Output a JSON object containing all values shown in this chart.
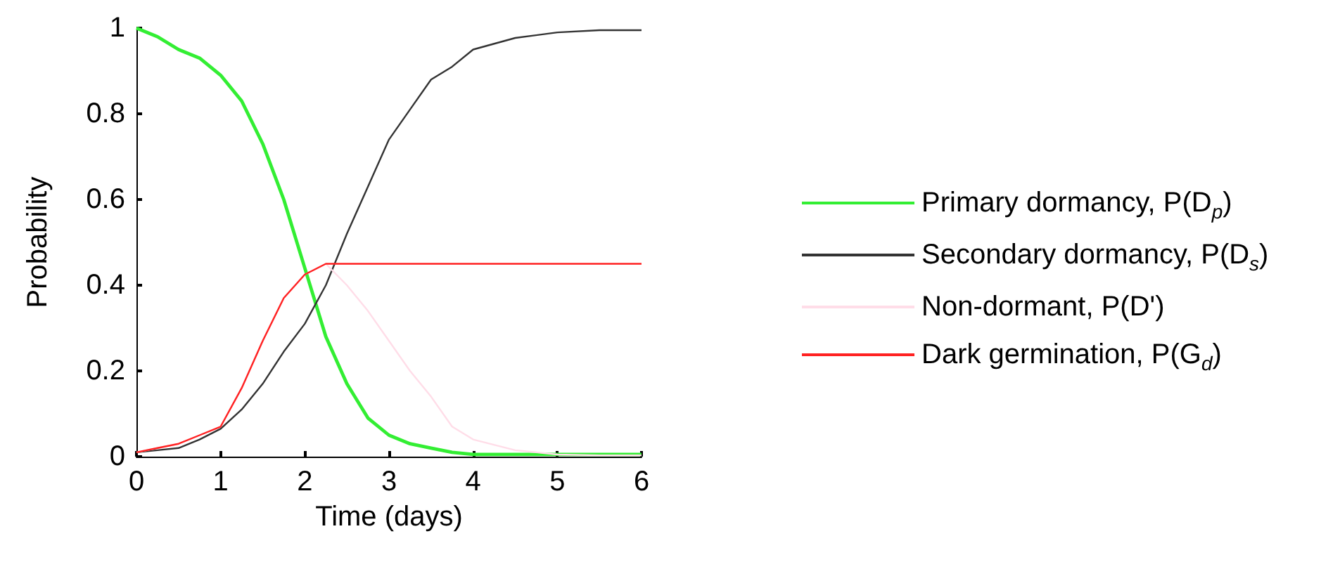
{
  "chart_data": {
    "type": "line",
    "xlabel": "Time (days)",
    "ylabel": "Probability",
    "x": [
      0,
      0.25,
      0.5,
      0.75,
      1,
      1.25,
      1.5,
      1.75,
      2,
      2.25,
      2.5,
      2.75,
      3,
      3.25,
      3.5,
      3.75,
      4,
      4.5,
      5,
      5.5,
      6
    ],
    "series": [
      {
        "name": "Primary dormancy, P(D$_{p}$)",
        "color": "#33ee33",
        "values": [
          1.0,
          0.98,
          0.95,
          0.93,
          0.89,
          0.83,
          0.73,
          0.6,
          0.44,
          0.28,
          0.17,
          0.09,
          0.05,
          0.03,
          0.02,
          0.01,
          0.005,
          0.005,
          0.005,
          0.005,
          0.005
        ]
      },
      {
        "name": "Secondary dormancy, P(D$_{s}$)",
        "color": "#333333",
        "values": [
          0.01,
          0.015,
          0.02,
          0.04,
          0.065,
          0.11,
          0.17,
          0.245,
          0.31,
          0.4,
          0.52,
          0.63,
          0.74,
          0.81,
          0.88,
          0.91,
          0.95,
          0.977,
          0.99,
          0.995,
          0.995
        ]
      },
      {
        "name": "Non-dormant, P(D')",
        "color": "#ffdde8",
        "values": [
          0.01,
          0.02,
          0.03,
          0.05,
          0.07,
          0.16,
          0.27,
          0.37,
          0.425,
          0.45,
          0.4,
          0.34,
          0.27,
          0.2,
          0.14,
          0.07,
          0.04,
          0.015,
          0.005,
          0.003,
          0.003
        ]
      },
      {
        "name": "Dark germination, P(G$_{d}$)",
        "color": "#ff2222",
        "values": [
          0.01,
          0.02,
          0.03,
          0.05,
          0.07,
          0.16,
          0.27,
          0.37,
          0.425,
          0.45,
          0.45,
          0.45,
          0.45,
          0.45,
          0.45,
          0.45,
          0.45,
          0.45,
          0.45,
          0.45,
          0.45
        ]
      }
    ],
    "xlim": [
      0,
      6
    ],
    "xticks": [
      0,
      1,
      2,
      3,
      4,
      5,
      6
    ],
    "ylim": [
      0,
      1
    ],
    "yticks": [
      0,
      0.2,
      0.4,
      0.6,
      0.8,
      1
    ],
    "grid": false,
    "legend": "right",
    "marker": "none",
    "line_style": "solid"
  }
}
